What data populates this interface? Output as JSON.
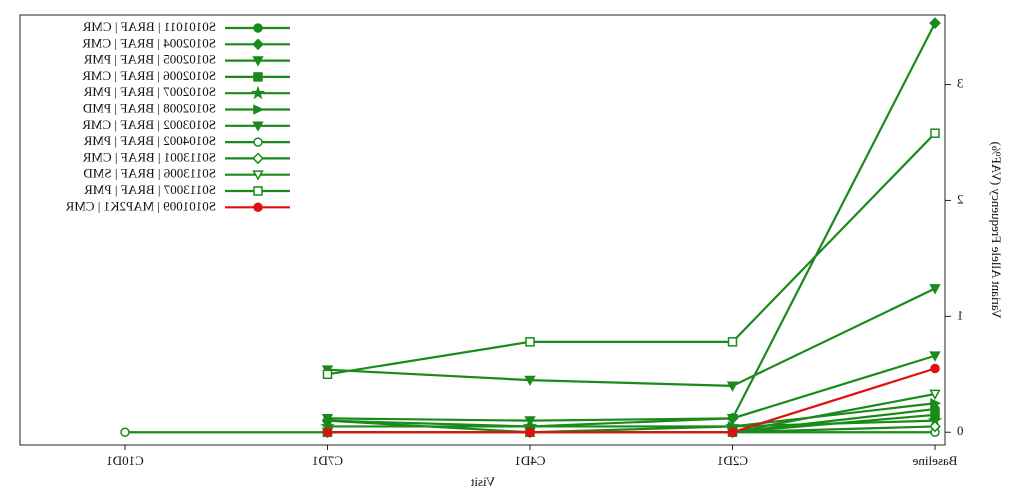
{
  "chart_data": {
    "type": "line",
    "x_label": "Visit",
    "y_label": "Variant Allele Frequency (VAF%)",
    "categories": [
      "Baseline",
      "C2D1",
      "C4D1",
      "C7D1",
      "C10D1"
    ],
    "ylim": [
      -0.11,
      3.6
    ],
    "yticks": [
      0,
      1,
      2,
      3
    ],
    "mirrored": true,
    "series": [
      {
        "name": "S0101011 | BRAF | CMR",
        "color": "#1a8a1a",
        "marker": "circle",
        "filled": true,
        "values": [
          0.2,
          0,
          0,
          0.1,
          null
        ]
      },
      {
        "name": "S0102004 | BRAF | CMR",
        "color": "#1a8a1a",
        "marker": "diamond",
        "filled": true,
        "values": [
          3.53,
          0.12,
          0.05,
          0.1,
          null
        ]
      },
      {
        "name": "S0102005 | BRAF | PMR",
        "color": "#1a8a1a",
        "marker": "down",
        "filled": true,
        "values": [
          1.24,
          0.4,
          0.45,
          0.54,
          null
        ]
      },
      {
        "name": "S0102006 | BRAF | CMR",
        "color": "#1a8a1a",
        "marker": "square",
        "filled": true,
        "values": [
          0.15,
          0,
          0,
          0,
          null
        ]
      },
      {
        "name": "S0102007 | BRAF | PMR",
        "color": "#1a8a1a",
        "marker": "star",
        "filled": true,
        "values": [
          0.1,
          0.05,
          0.05,
          0.05,
          null
        ]
      },
      {
        "name": "S0102008 | BRAF | PMD",
        "color": "#1a8a1a",
        "marker": "left",
        "filled": true,
        "values": [
          0.25,
          0.05,
          0,
          0,
          null
        ]
      },
      {
        "name": "S0103002 | BRAF | CMR",
        "color": "#1a8a1a",
        "marker": "down",
        "filled": true,
        "values": [
          0.66,
          0.12,
          0.1,
          0.12,
          null
        ]
      },
      {
        "name": "S0104002 | BRAF | PMR",
        "color": "#1a8a1a",
        "marker": "circle",
        "filled": false,
        "values": [
          0,
          0,
          0,
          0,
          0
        ]
      },
      {
        "name": "S0113001 | BRAF | CMR",
        "color": "#1a8a1a",
        "marker": "diamond",
        "filled": false,
        "values": [
          0.05,
          0,
          0,
          0,
          null
        ]
      },
      {
        "name": "S0113006 | BRAF | SMD",
        "color": "#1a8a1a",
        "marker": "down",
        "filled": false,
        "values": [
          0.33,
          0,
          0,
          0,
          null
        ]
      },
      {
        "name": "S0113007 | BRAF | PMR",
        "color": "#1a8a1a",
        "marker": "square",
        "filled": false,
        "values": [
          2.58,
          0.78,
          0.78,
          0.5,
          null
        ]
      },
      {
        "name": "S0101009 | MAP2K1 | CMR",
        "color": "#e01010",
        "marker": "circle",
        "filled": true,
        "values": [
          0.55,
          0,
          0,
          0,
          null
        ]
      }
    ]
  }
}
